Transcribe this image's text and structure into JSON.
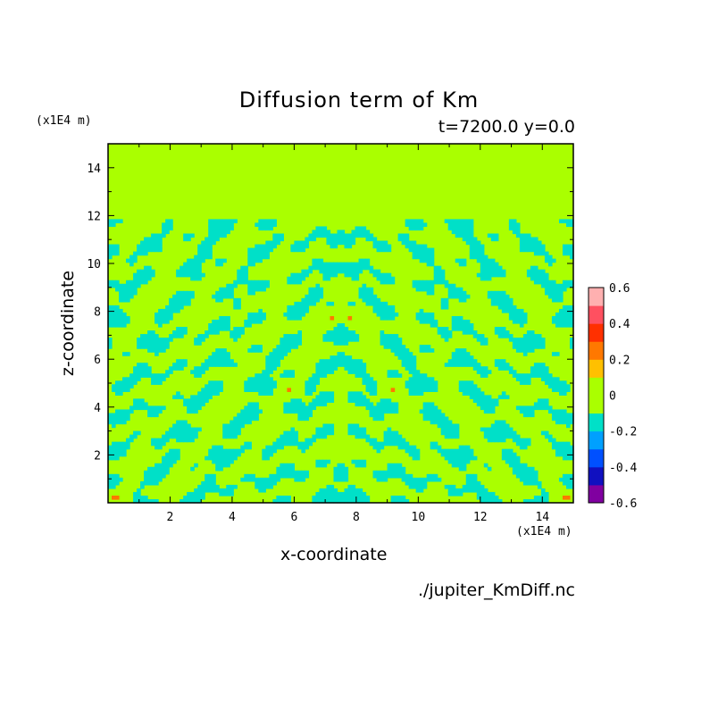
{
  "chart_data": {
    "type": "heatmap",
    "title": "Diffusion term of Km",
    "subtitle": "t=7200.0 y=0.0",
    "xlabel": "x-coordinate",
    "ylabel": "z-coordinate",
    "x_unit": "(x1E4 m)",
    "y_unit": "(x1E4 m)",
    "xlim": [
      0,
      15
    ],
    "ylim": [
      0,
      15
    ],
    "x_ticks": [
      "2",
      "4",
      "6",
      "8",
      "10",
      "12",
      "14"
    ],
    "y_ticks": [
      "2",
      "4",
      "6",
      "8",
      "10",
      "12",
      "14"
    ],
    "colorbar": {
      "levels": [
        -0.6,
        -0.5,
        -0.4,
        -0.3,
        -0.2,
        -0.1,
        0,
        0.1,
        0.2,
        0.3,
        0.4,
        0.5,
        0.6
      ],
      "tick_labels": [
        "0.6",
        "0.4",
        "0.2",
        "0",
        "-0.2",
        "-0.4",
        "-0.6"
      ],
      "colors": [
        "#8000a0",
        "#1010c0",
        "#0050ff",
        "#00a0ff",
        "#00e0c8",
        "#aaff00",
        "#aaff00",
        "#ffc000",
        "#ff7800",
        "#ff3000",
        "#ff5060",
        "#ffb0b0"
      ]
    },
    "background_value": 0,
    "field_description_zmax": 12.2
  },
  "source_file": "./jupiter_KmDiff.nc"
}
